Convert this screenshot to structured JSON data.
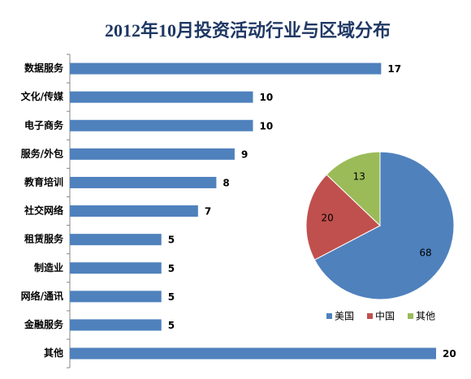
{
  "chart_data": [
    {
      "type": "bar",
      "title": "2012年10月投资活动行业与区域分布",
      "categories": [
        "数据服务",
        "文化/传媒",
        "电子商务",
        "服务/外包",
        "教育培训",
        "社交网络",
        "租赁服务",
        "制造业",
        "网络/通讯",
        "金融服务",
        "其他"
      ],
      "values": [
        17,
        10,
        10,
        9,
        8,
        7,
        5,
        5,
        5,
        5,
        20
      ],
      "color": "#4f81bd"
    },
    {
      "type": "pie",
      "series": [
        {
          "name": "美国",
          "color": "#4f81bd",
          "value": 68
        },
        {
          "name": "中国",
          "color": "#c0504d",
          "value": 20
        },
        {
          "name": "其他",
          "color": "#9bbb59",
          "value": 13
        }
      ]
    }
  ]
}
